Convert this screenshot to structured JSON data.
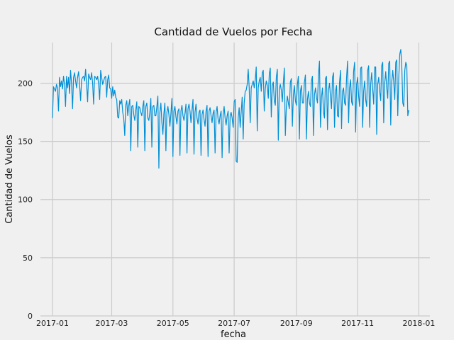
{
  "chart_data": {
    "type": "line",
    "title": "Cantidad de Vuelos por Fecha",
    "xlabel": "fecha",
    "ylabel": "Cantidad de Vuelos",
    "x_tick_labels": [
      "2017-01",
      "2017-03",
      "2017-05",
      "2017-07",
      "2017-09",
      "2017-11",
      "2018-01"
    ],
    "y_tick_labels": [
      "0",
      "50",
      "100",
      "150",
      "200"
    ],
    "y_ticks": [
      0,
      50,
      100,
      150,
      200
    ],
    "ylim": [
      0,
      235
    ],
    "xlim": [
      "2016-12-20",
      "2018-01-12"
    ],
    "grid": true,
    "line_color": "#008fd5",
    "series": [
      {
        "x_start": "2017-01-01",
        "x_step_days": 1,
        "values": [
          170,
          197,
          195,
          193,
          199,
          196,
          176,
          205,
          197,
          202,
          195,
          206,
          199,
          180,
          206,
          196,
          205,
          191,
          211,
          200,
          178,
          205,
          209,
          202,
          196,
          205,
          210,
          199,
          185,
          203,
          205,
          206,
          202,
          212,
          199,
          184,
          208,
          205,
          203,
          209,
          200,
          182,
          206,
          205,
          203,
          206,
          199,
          186,
          211,
          205,
          199,
          202,
          205,
          206,
          188,
          203,
          207,
          196,
          195,
          187,
          197,
          189,
          194,
          188,
          186,
          171,
          170,
          185,
          182,
          186,
          175,
          170,
          155,
          181,
          185,
          172,
          181,
          186,
          142,
          180,
          181,
          173,
          168,
          177,
          184,
          145,
          180,
          179,
          175,
          172,
          180,
          185,
          142,
          180,
          183,
          170,
          168,
          175,
          187,
          145,
          180,
          181,
          172,
          172,
          180,
          189,
          127,
          175,
          183,
          166,
          156,
          174,
          183,
          142,
          175,
          180,
          173,
          163,
          174,
          187,
          137,
          176,
          180,
          171,
          165,
          176,
          178,
          138,
          176,
          181,
          172,
          168,
          174,
          182,
          140,
          178,
          182,
          176,
          166,
          177,
          186,
          139,
          175,
          182,
          170,
          165,
          175,
          177,
          138,
          173,
          177,
          169,
          163,
          176,
          181,
          137,
          176,
          179,
          172,
          166,
          174,
          177,
          140,
          175,
          180,
          169,
          165,
          172,
          176,
          136,
          173,
          180,
          170,
          164,
          172,
          176,
          140,
          172,
          175,
          170,
          162,
          184,
          186,
          133,
          132,
          170,
          179,
          162,
          175,
          188,
          152,
          183,
          193,
          194,
          199,
          212,
          196,
          166,
          196,
          199,
          202,
          196,
          203,
          214,
          159,
          196,
          202,
          205,
          193,
          209,
          211,
          176,
          195,
          202,
          198,
          187,
          208,
          213,
          171,
          198,
          201,
          185,
          181,
          205,
          212,
          151,
          195,
          199,
          194,
          184,
          200,
          213,
          155,
          180,
          189,
          183,
          178,
          201,
          204,
          163,
          190,
          198,
          185,
          181,
          199,
          206,
          152,
          193,
          198,
          183,
          183,
          201,
          207,
          152,
          186,
          193,
          183,
          180,
          202,
          206,
          155,
          190,
          196,
          188,
          183,
          208,
          219,
          162,
          188,
          196,
          175,
          170,
          204,
          206,
          160,
          194,
          200,
          188,
          178,
          205,
          209,
          162,
          193,
          198,
          172,
          171,
          201,
          211,
          161,
          193,
          196,
          183,
          181,
          205,
          219,
          166,
          196,
          203,
          184,
          181,
          210,
          218,
          158,
          199,
          205,
          189,
          180,
          213,
          214,
          162,
          193,
          202,
          186,
          180,
          211,
          215,
          162,
          199,
          209,
          195,
          182,
          214,
          214,
          156,
          199,
          205,
          193,
          185,
          215,
          218,
          166,
          200,
          210,
          196,
          187,
          217,
          219,
          164,
          201,
          211,
          201,
          186,
          218,
          220,
          172,
          205,
          225,
          229,
          215,
          183,
          180,
          211,
          218,
          215,
          172,
          177
        ]
      }
    ]
  }
}
